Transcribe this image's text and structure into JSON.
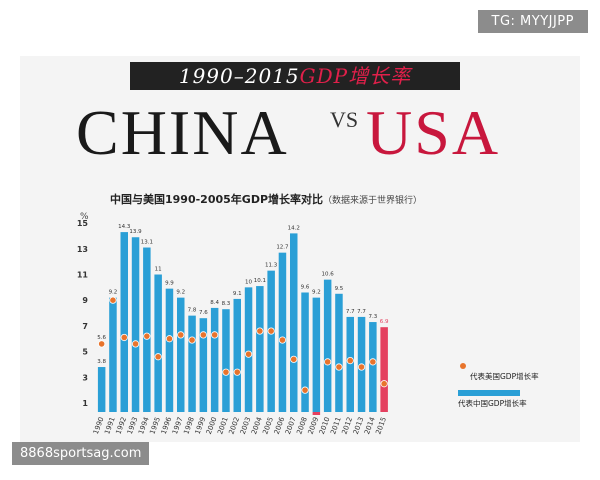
{
  "watermark_top": "TG: MYYJJPP",
  "watermark_bottom": "8868sportsag.com",
  "banner": {
    "years": "1990–2015",
    "topic": "GDP增长率"
  },
  "headline": {
    "left": "CHINA",
    "vs": "VS",
    "right": "USA"
  },
  "colors": {
    "china": "#2a9fd6",
    "usa": "#e8742c",
    "highlight": "#e4405f"
  },
  "chart_data": {
    "type": "bar",
    "title": "中国与美国1990-2005年GDP增长率对比",
    "subtitle": "（数据来源于世界银行）",
    "ylabel": "%",
    "ylim": [
      0,
      15.5
    ],
    "yticks": [
      1,
      3,
      5,
      7,
      9,
      11,
      13,
      15
    ],
    "categories": [
      "1990",
      "1991",
      "1992",
      "1993",
      "1994",
      "1995",
      "1996",
      "1997",
      "1998",
      "1999",
      "2000",
      "2001",
      "2002",
      "2003",
      "2004",
      "2005",
      "2006",
      "2007",
      "2008",
      "2009",
      "2010",
      "2011",
      "2012",
      "2013",
      "2014",
      "2015"
    ],
    "series": [
      {
        "name": "代表中国GDP增长率",
        "values": [
          3.8,
          9.2,
          14.3,
          13.9,
          13.1,
          11,
          9.9,
          9.2,
          7.8,
          7.6,
          8.4,
          8.3,
          9.1,
          10,
          10.1,
          11.3,
          12.7,
          14.2,
          9.6,
          9.2,
          10.6,
          9.5,
          7.7,
          7.7,
          7.3,
          6.9
        ],
        "labels": [
          "3.8",
          "9.2",
          "14.3",
          "13.9",
          "13.1",
          "11",
          "9.9",
          "9.2",
          "7.8",
          "7.6",
          "8.4",
          "8.3",
          "9.1",
          "10",
          "10.1",
          "11.3",
          "12.7",
          "14.2",
          "9.6",
          "9.2",
          "10.6",
          "9.5",
          "7.7",
          "7.7",
          "7.3",
          "6.9"
        ]
      },
      {
        "name": "代表美国GDP增长率",
        "values": [
          5.6,
          9.0,
          6.1,
          5.6,
          6.2,
          4.6,
          6.0,
          6.3,
          5.9,
          6.3,
          6.3,
          3.4,
          3.4,
          4.8,
          6.6,
          6.6,
          5.9,
          4.4,
          2.0,
          -0.4,
          4.2,
          3.8,
          4.3,
          3.8,
          4.2,
          2.5
        ],
        "label_first": "5.6"
      }
    ],
    "highlight_category": "2015",
    "legend_position": "right"
  }
}
